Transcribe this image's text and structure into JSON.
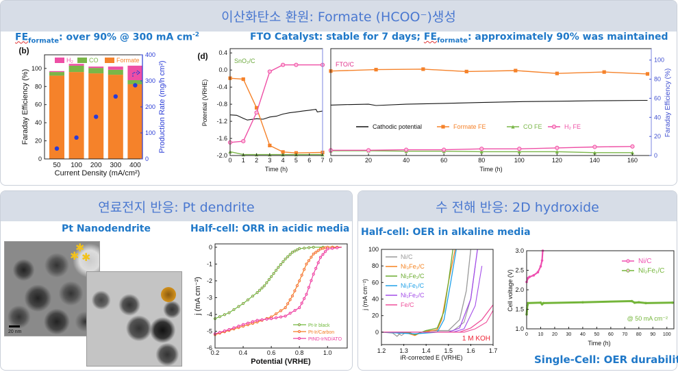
{
  "top_panel": {
    "title": "이산화탄소 환원: Formate (HCOO⁻)생성",
    "left_caption": {
      "fe": "FE",
      "sub": "formate",
      "text": ": over 90% @ 300 mA cm",
      "sup": "-2"
    },
    "right_caption": {
      "pre": "FTO Catalyst: stable for 7 days; ",
      "fe": "FE",
      "sub": "formate",
      "text": ": approximately 90% was maintained"
    }
  },
  "bottom_left_panel": {
    "title": "연료전지 반응: Pt dendrite",
    "image_caption": "Pt Nanodendrite",
    "scale_bar": "20 nm",
    "chart_caption": "Half-cell: ORR in acidic media"
  },
  "bottom_right_panel": {
    "title": "수 전해 반응: 2D hydroxide",
    "left_caption": "Half-cell: OER in alkaline media",
    "right_caption": "Single-Cell: OER durability"
  },
  "colors": {
    "formate": "#f5822a",
    "co": "#7ab648",
    "h2": "#ee4fa5",
    "rate": "#2a3cd6",
    "accent": "#1f78c8",
    "header_text": "#4a78d0",
    "header_bg": "#d7dde7"
  },
  "chart_data": [
    {
      "type": "bar",
      "panel_label": "(b)",
      "categories": [
        "50",
        "100",
        "200",
        "300",
        "400"
      ],
      "xlabel": "Current Density (mA/cm²)",
      "ylabel": "Faraday Efficiency (%)",
      "y2label": "Production Rate (mg/h cm²)",
      "ylim": [
        0,
        115
      ],
      "y2lim": [
        0,
        400
      ],
      "yticks": [
        "0",
        "20",
        "40",
        "60",
        "80",
        "100"
      ],
      "y2ticks": [
        "0",
        "100",
        "200",
        "300",
        "400"
      ],
      "legend": [
        "H₂",
        "CO",
        "Formate"
      ],
      "series": [
        {
          "name": "Formate",
          "values": [
            92,
            96,
            94.5,
            93,
            82.5
          ]
        },
        {
          "name": "CO",
          "values": [
            4,
            7,
            6,
            5.5,
            4.5
          ]
        },
        {
          "name": "H₂",
          "values": [
            1,
            2,
            1.5,
            3.5,
            16
          ]
        }
      ],
      "production_rate": [
        40,
        82,
        162,
        240,
        283
      ]
    },
    {
      "type": "line",
      "panel_label": "(d)",
      "label": "SnO₂/C",
      "xlabel": "Time (h)",
      "ylabel": "Potential (VRHE)",
      "xlim": [
        0,
        7
      ],
      "ylim": [
        -2.0,
        0.5
      ],
      "y2lim": [
        0,
        112
      ],
      "xticks": [
        "0",
        "1",
        "2",
        "3",
        "4",
        "5",
        "6",
        "7"
      ],
      "yticks": [
        "-2.0",
        "-1.6",
        "-1.2",
        "-0.8",
        "-0.4",
        "0.0",
        "0.4"
      ],
      "series": [
        {
          "name": "Cathodic potential",
          "axis": "left",
          "points": [
            [
              0,
              -1.05
            ],
            [
              0.5,
              -1.06
            ],
            [
              1,
              -1.13
            ],
            [
              1.3,
              -1.17
            ],
            [
              2,
              -1.14
            ],
            [
              2.5,
              -1.15
            ],
            [
              3,
              -1.1
            ],
            [
              3.5,
              -1.08
            ],
            [
              4,
              -1.03
            ],
            [
              4.5,
              -1.0
            ],
            [
              5,
              -0.98
            ],
            [
              5.5,
              -0.96
            ],
            [
              6,
              -0.94
            ],
            [
              6.5,
              -0.92
            ],
            [
              6.6,
              -0.98
            ],
            [
              7,
              -0.96
            ]
          ]
        },
        {
          "name": "Formate FE",
          "axis": "right",
          "points": [
            [
              0,
              81
            ],
            [
              1,
              80
            ],
            [
              2,
              50
            ],
            [
              3,
              10.5
            ],
            [
              4,
              3.7
            ],
            [
              5,
              2.7
            ],
            [
              7,
              3.2
            ]
          ]
        },
        {
          "name": "CO FE",
          "axis": "right",
          "points": [
            [
              0,
              4
            ],
            [
              1,
              1
            ],
            [
              2,
              1
            ],
            [
              3,
              1
            ],
            [
              4,
              1
            ],
            [
              5,
              1
            ],
            [
              7,
              1
            ]
          ]
        },
        {
          "name": "H₂ FE",
          "axis": "right",
          "points": [
            [
              0,
              13.7
            ],
            [
              1,
              15
            ],
            [
              2,
              45
            ],
            [
              3,
              88
            ],
            [
              4,
              95
            ],
            [
              5,
              95
            ],
            [
              7,
              95
            ]
          ]
        }
      ]
    },
    {
      "type": "line",
      "label": "FTO/C",
      "xlabel": "Time (h)",
      "y2label": "Faraday Efficiency (%)",
      "xlim": [
        0,
        170
      ],
      "ylim": [
        -2.0,
        0.5
      ],
      "y2lim": [
        0,
        112
      ],
      "xticks": [
        "0",
        "20",
        "40",
        "60",
        "80",
        "100",
        "120",
        "140",
        "160"
      ],
      "y2ticks": [
        "0",
        "20",
        "40",
        "60",
        "80",
        "100"
      ],
      "legend": [
        "Cathodic potential",
        "Formate FE",
        "CO FE",
        "H₂ FE"
      ],
      "series": [
        {
          "name": "Cathodic potential",
          "axis": "left",
          "points": [
            [
              0,
              -0.82
            ],
            [
              8,
              -0.81
            ],
            [
              20,
              -0.8
            ],
            [
              24,
              -0.83
            ],
            [
              40,
              -0.8
            ],
            [
              60,
              -0.78
            ],
            [
              80,
              -0.76
            ],
            [
              100,
              -0.74
            ],
            [
              120,
              -0.73
            ],
            [
              140,
              -0.72
            ],
            [
              168,
              -0.71
            ]
          ]
        },
        {
          "name": "Formate FE",
          "axis": "right",
          "points": [
            [
              0,
              88.5
            ],
            [
              24,
              90
            ],
            [
              49,
              90.5
            ],
            [
              72,
              88
            ],
            [
              98,
              89
            ],
            [
              120,
              86
            ],
            [
              145,
              87.5
            ],
            [
              168,
              85.5
            ]
          ]
        },
        {
          "name": "CO FE",
          "axis": "right",
          "points": [
            [
              0,
              5
            ],
            [
              20,
              5
            ],
            [
              40,
              4.5
            ],
            [
              60,
              4.5
            ],
            [
              80,
              4
            ],
            [
              100,
              4
            ],
            [
              120,
              4
            ],
            [
              140,
              3
            ],
            [
              160,
              3
            ]
          ]
        },
        {
          "name": "H₂ FE",
          "axis": "right",
          "points": [
            [
              0,
              5.5
            ],
            [
              20,
              5.5
            ],
            [
              40,
              6
            ],
            [
              60,
              6
            ],
            [
              80,
              7
            ],
            [
              100,
              7
            ],
            [
              120,
              8
            ],
            [
              140,
              9
            ],
            [
              160,
              9.5
            ]
          ]
        }
      ]
    },
    {
      "type": "line",
      "xlabel": "Potential (VRHE)",
      "ylabel": "j (mA cm⁻²)",
      "xlim": [
        0.2,
        1.14
      ],
      "ylim": [
        -6,
        0.2
      ],
      "xticks": [
        "0.2",
        "0.4",
        "0.6",
        "0.8",
        "1.0"
      ],
      "yticks": [
        "-6",
        "-5",
        "-4",
        "-3",
        "-2",
        "-1",
        "0"
      ],
      "legend": [
        "Pt-Ir black",
        "Pt-Ir/Carbon",
        "PtND-IrND/ATO"
      ],
      "series": [
        {
          "name": "Pt-Ir black",
          "points": [
            [
              0.2,
              -4.25
            ],
            [
              0.3,
              -3.9
            ],
            [
              0.4,
              -3.35
            ],
            [
              0.5,
              -2.7
            ],
            [
              0.55,
              -2.3
            ],
            [
              0.6,
              -1.75
            ],
            [
              0.65,
              -1.2
            ],
            [
              0.7,
              -0.7
            ],
            [
              0.75,
              -0.3
            ],
            [
              0.8,
              -0.08
            ],
            [
              0.9,
              0
            ],
            [
              1.1,
              0
            ]
          ]
        },
        {
          "name": "Pt-Ir/Carbon",
          "points": [
            [
              0.2,
              -5.2
            ],
            [
              0.3,
              -4.95
            ],
            [
              0.4,
              -4.7
            ],
            [
              0.5,
              -4.45
            ],
            [
              0.6,
              -4.15
            ],
            [
              0.7,
              -3.6
            ],
            [
              0.75,
              -2.9
            ],
            [
              0.8,
              -2.0
            ],
            [
              0.85,
              -1.0
            ],
            [
              0.9,
              -0.4
            ],
            [
              0.95,
              -0.1
            ],
            [
              1.0,
              0
            ],
            [
              1.1,
              0
            ]
          ]
        },
        {
          "name": "PtND-IrND/ATO",
          "points": [
            [
              0.2,
              -5.15
            ],
            [
              0.3,
              -4.9
            ],
            [
              0.4,
              -4.6
            ],
            [
              0.5,
              -4.35
            ],
            [
              0.6,
              -4.25
            ],
            [
              0.7,
              -4.1
            ],
            [
              0.8,
              -3.6
            ],
            [
              0.85,
              -2.8
            ],
            [
              0.9,
              -1.6
            ],
            [
              0.95,
              -0.6
            ],
            [
              1.0,
              -0.1
            ],
            [
              1.1,
              0
            ]
          ]
        }
      ]
    },
    {
      "type": "line",
      "xlabel": "iR-corrected E (VRHE)",
      "ylabel": "j (mA cm⁻²)",
      "annotation": "1 M KOH",
      "xlim": [
        1.2,
        1.7
      ],
      "ylim": [
        -15,
        100
      ],
      "xticks": [
        "1.2",
        "1.3",
        "1.4",
        "1.5",
        "1.6",
        "1.7"
      ],
      "yticks": [
        "0",
        "20",
        "40",
        "60",
        "80",
        "100"
      ],
      "legend": [
        "Ni/C",
        "Ni₃Fe₁/C",
        "Ni₂Fe₁/C",
        "Ni₁Fe₁/C",
        "Ni₁Fe₂/C",
        "Fe/C"
      ],
      "series": [
        {
          "name": "Ni/C",
          "points": [
            [
              1.2,
              0
            ],
            [
              1.25,
              -1
            ],
            [
              1.27,
              -5
            ],
            [
              1.29,
              0
            ],
            [
              1.38,
              0
            ],
            [
              1.4,
              2
            ],
            [
              1.5,
              2
            ],
            [
              1.55,
              15
            ],
            [
              1.58,
              50
            ],
            [
              1.6,
              100
            ]
          ]
        },
        {
          "name": "Ni₃Fe₁/C",
          "points": [
            [
              1.2,
              0
            ],
            [
              1.3,
              0
            ],
            [
              1.35,
              -4
            ],
            [
              1.38,
              0
            ],
            [
              1.45,
              3
            ],
            [
              1.47,
              15
            ],
            [
              1.5,
              60
            ],
            [
              1.53,
              100
            ]
          ]
        },
        {
          "name": "Ni₂Fe₁/C",
          "points": [
            [
              1.2,
              0
            ],
            [
              1.33,
              -1
            ],
            [
              1.35,
              -3
            ],
            [
              1.4,
              2
            ],
            [
              1.45,
              5
            ],
            [
              1.48,
              25
            ],
            [
              1.5,
              60
            ],
            [
              1.52,
              100
            ]
          ]
        },
        {
          "name": "Ni₁Fe₁/C",
          "points": [
            [
              1.2,
              0
            ],
            [
              1.35,
              -2
            ],
            [
              1.45,
              0
            ],
            [
              1.48,
              15
            ],
            [
              1.51,
              60
            ],
            [
              1.535,
              100
            ]
          ]
        },
        {
          "name": "Ni₁Fe₂/C",
          "points": [
            [
              1.2,
              0
            ],
            [
              1.5,
              0
            ],
            [
              1.55,
              5
            ],
            [
              1.6,
              40
            ],
            [
              1.63,
              100
            ]
          ]
        },
        {
          "name": "Fe/C",
          "points": [
            [
              1.2,
              0
            ],
            [
              1.55,
              0
            ],
            [
              1.6,
              5
            ],
            [
              1.65,
              15
            ],
            [
              1.7,
              33
            ]
          ]
        }
      ]
    },
    {
      "type": "scatter",
      "xlabel": "Time (h)",
      "ylabel": "Cell voltage (V)",
      "annotation": "@ 50 mA cm⁻²",
      "xlim": [
        0,
        105
      ],
      "ylim": [
        1.0,
        3.0
      ],
      "xticks": [
        "0",
        "10",
        "20",
        "30",
        "40",
        "50",
        "60",
        "70",
        "80",
        "90",
        "100"
      ],
      "yticks": [
        "1.0",
        "1.5",
        "2.0",
        "2.5",
        "3.0"
      ],
      "legend": [
        "Ni/C",
        "Ni₂Fe₁/C"
      ],
      "series": [
        {
          "name": "Ni/C",
          "points": [
            [
              0,
              2.2
            ],
            [
              1,
              2.3
            ],
            [
              2,
              2.33
            ],
            [
              5,
              2.37
            ],
            [
              8,
              2.45
            ],
            [
              10,
              2.6
            ],
            [
              11,
              2.75
            ],
            [
              11.5,
              3.0
            ]
          ]
        },
        {
          "name": "Ni₂Fe₁/C",
          "points": [
            [
              0,
              1.37
            ],
            [
              0.5,
              1.6
            ],
            [
              1,
              1.66
            ],
            [
              10,
              1.67
            ],
            [
              11,
              1.63
            ],
            [
              12,
              1.66
            ],
            [
              40,
              1.68
            ],
            [
              75,
              1.71
            ],
            [
              77,
              1.67
            ],
            [
              80,
              1.68
            ],
            [
              85,
              1.66
            ],
            [
              104,
              1.67
            ]
          ]
        }
      ]
    }
  ]
}
